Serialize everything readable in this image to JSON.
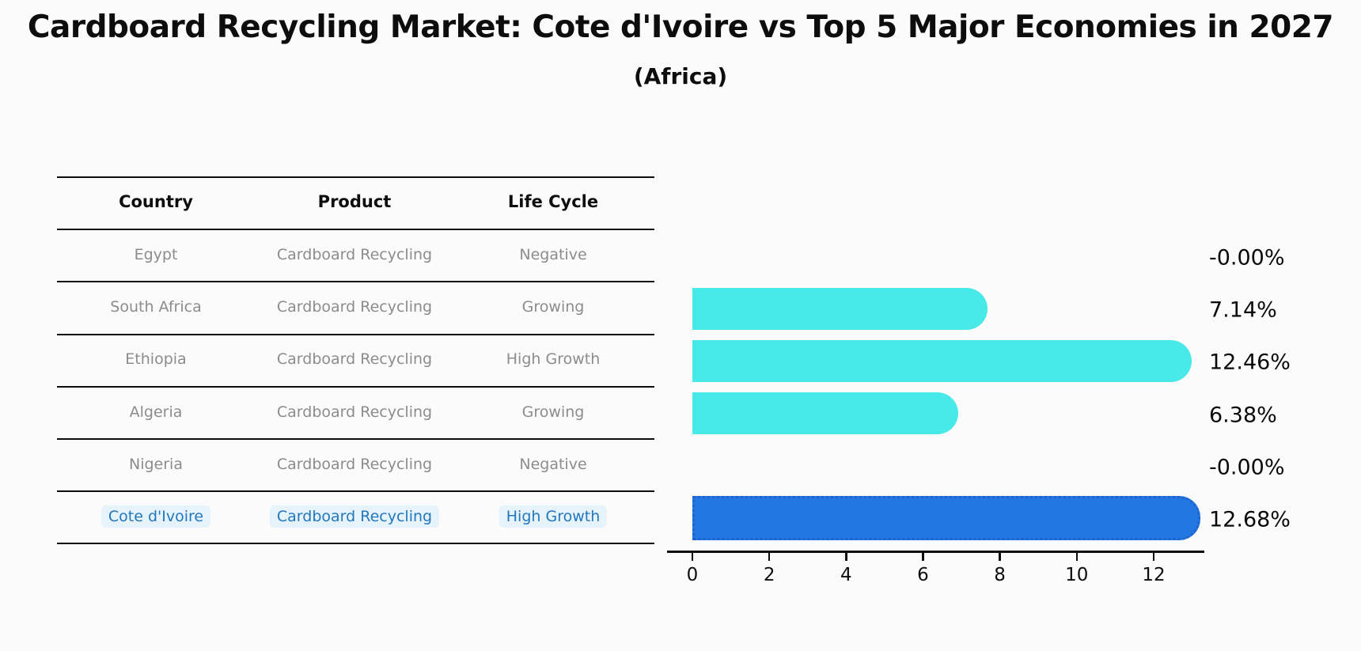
{
  "title": "Cardboard Recycling Market: Cote d'Ivoire vs Top 5 Major Economies in 2027",
  "subtitle": "(Africa)",
  "table": {
    "headers": [
      "Country",
      "Product",
      "Life Cycle"
    ],
    "rows": [
      {
        "country": "Egypt",
        "product": "Cardboard Recycling",
        "life_cycle": "Negative",
        "highlight": false
      },
      {
        "country": "South Africa",
        "product": "Cardboard Recycling",
        "life_cycle": "Growing",
        "highlight": false
      },
      {
        "country": "Ethiopia",
        "product": "Cardboard Recycling",
        "life_cycle": "High Growth",
        "highlight": false
      },
      {
        "country": "Algeria",
        "product": "Cardboard Recycling",
        "life_cycle": "Growing",
        "highlight": false
      },
      {
        "country": "Nigeria",
        "product": "Cardboard Recycling",
        "life_cycle": "Negative",
        "highlight": false
      },
      {
        "country": "Cote d'Ivoire",
        "product": "Cardboard Recycling",
        "life_cycle": "High Growth",
        "highlight": true
      }
    ]
  },
  "chart_data": {
    "type": "bar",
    "orientation": "horizontal",
    "title": "Cardboard Recycling Market: Cote d'Ivoire vs Top 5 Major Economies in 2027 (Africa)",
    "categories": [
      "Egypt",
      "South Africa",
      "Ethiopia",
      "Algeria",
      "Nigeria",
      "Cote d'Ivoire"
    ],
    "values": [
      0,
      7.14,
      12.46,
      6.38,
      0,
      12.68
    ],
    "value_labels": [
      "-0.00%",
      "7.14%",
      "12.46%",
      "6.38%",
      "-0.00%",
      "12.68%"
    ],
    "x_ticks": [
      0,
      2,
      4,
      6,
      8,
      10,
      12
    ],
    "xlim": [
      0,
      13.3
    ],
    "grid": false,
    "legend": "none",
    "bar_color": "#48e9e9",
    "highlight_bar_color": "#2377e0",
    "highlight_bar_edge_color": "#1e63cf",
    "highlight_text_color": "#2277bd",
    "text_color": "#8c8c8c",
    "highlight_index": 5
  }
}
